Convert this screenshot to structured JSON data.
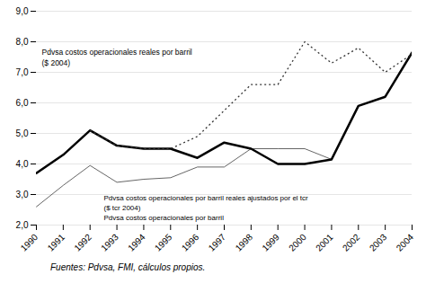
{
  "chart_data": {
    "type": "line",
    "x": [
      1990,
      1991,
      1992,
      1993,
      1994,
      1995,
      1996,
      1997,
      1998,
      1999,
      2000,
      2001,
      2002,
      2003,
      2004
    ],
    "series": [
      {
        "color": "#555555",
        "line_style": "solid",
        "values": [
          2.6,
          3.3,
          3.95,
          3.4,
          3.5,
          3.55,
          3.9,
          3.9,
          4.5,
          4.5,
          4.5,
          4.15,
          5.9,
          6.2,
          7.65
        ]
      },
      {
        "color": "#000000",
        "line_style": "solid",
        "values": [
          3.7,
          4.3,
          5.1,
          4.6,
          4.5,
          4.5,
          4.2,
          4.7,
          4.5,
          4.0,
          4.0,
          4.15,
          5.9,
          6.2,
          7.65
        ]
      },
      {
        "color": "#333333",
        "line_style": "dotted",
        "values": [
          null,
          null,
          5.1,
          4.6,
          4.5,
          4.5,
          4.9,
          5.75,
          6.6,
          6.6,
          8.0,
          7.3,
          7.8,
          7.0,
          7.6
        ]
      }
    ],
    "xlim": [
      1990,
      2004
    ],
    "xticks": [
      1990,
      1991,
      1992,
      1993,
      1994,
      1995,
      1996,
      1997,
      1998,
      1999,
      2000,
      2001,
      2002,
      2003,
      2004
    ],
    "ylim": [
      2.0,
      9.0
    ],
    "yticks": [
      {
        "value": 2.0,
        "label": "2,0"
      },
      {
        "value": 3.0,
        "label": "3,0"
      },
      {
        "value": 4.0,
        "label": "4,0"
      },
      {
        "value": 5.0,
        "label": "5,0"
      },
      {
        "value": 6.0,
        "label": "6,0"
      },
      {
        "value": 7.0,
        "label": "7,0"
      },
      {
        "value": 8.0,
        "label": "8,0"
      },
      {
        "value": 9.0,
        "label": "9,0"
      }
    ],
    "grid": "y",
    "annotations": [
      "Pdvsa costos operacionales reales por barril",
      "($ 2004)",
      "Pdvsa costos operacionales por barril reales ajustados por el tcr",
      "($ tcr 2004)",
      "Pdvsa costos operacionales por barril"
    ],
    "caption": "Fuentes: Pdvsa, FMI, cálculos propios."
  }
}
